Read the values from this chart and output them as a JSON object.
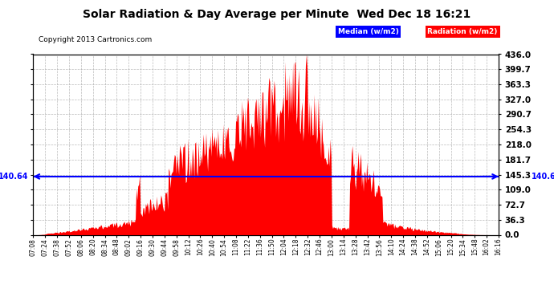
{
  "title": "Solar Radiation & Day Average per Minute  Wed Dec 18 16:21",
  "copyright": "Copyright 2013 Cartronics.com",
  "legend_median": "Median (w/m2)",
  "legend_radiation": "Radiation (w/m2)",
  "median_value": 140.64,
  "y_max": 436.0,
  "y_ticks": [
    0.0,
    36.3,
    72.7,
    109.0,
    145.3,
    181.7,
    218.0,
    254.3,
    290.7,
    327.0,
    363.3,
    399.7,
    436.0
  ],
  "x_tick_labels": [
    "07:08",
    "07:24",
    "07:38",
    "07:52",
    "08:06",
    "08:20",
    "08:34",
    "08:48",
    "09:02",
    "09:16",
    "09:30",
    "09:44",
    "09:58",
    "10:12",
    "10:26",
    "10:40",
    "10:54",
    "11:08",
    "11:22",
    "11:36",
    "11:50",
    "12:04",
    "12:18",
    "12:32",
    "12:46",
    "13:00",
    "13:14",
    "13:28",
    "13:42",
    "13:56",
    "14:10",
    "14:24",
    "14:38",
    "14:52",
    "15:06",
    "15:20",
    "15:34",
    "15:48",
    "16:02",
    "16:16"
  ],
  "bg_color": "#ffffff",
  "plot_bg_color": "#ffffff",
  "grid_color": "#aaaaaa",
  "radiation_color": "#ff0000",
  "median_line_color": "#0000ff",
  "title_color": "#000000"
}
